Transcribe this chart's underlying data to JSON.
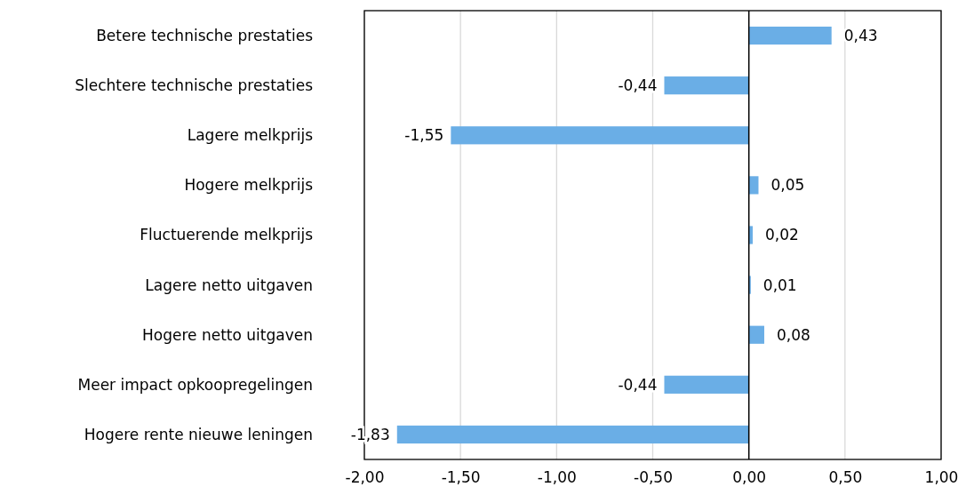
{
  "chart_data": {
    "type": "bar",
    "orientation": "horizontal",
    "categories": [
      "Betere technische prestaties",
      "Slechtere technische prestaties",
      "Lagere melkprijs",
      "Hogere melkprijs",
      "Fluctuerende melkprijs",
      "Lagere netto uitgaven",
      "Hogere netto uitgaven",
      "Meer impact opkoopregelingen",
      "Hogere rente nieuwe leningen"
    ],
    "values": [
      0.43,
      -0.44,
      -1.55,
      0.05,
      0.02,
      0.01,
      0.08,
      -0.44,
      -1.83
    ],
    "value_labels": [
      "0,43",
      "-0,44",
      "-1,55",
      "0,05",
      "0,02",
      "0,01",
      "0,08",
      "-0,44",
      "-1,83"
    ],
    "color": "#6aaee6",
    "xlim": [
      -2,
      1
    ],
    "xticks": [
      {
        "value": -2,
        "label": "-2,00"
      },
      {
        "value": -1.5,
        "label": "-1,50"
      },
      {
        "value": -1,
        "label": "-1,00"
      },
      {
        "value": -0.5,
        "label": "-0,50"
      },
      {
        "value": 0,
        "label": "0,00"
      },
      {
        "value": 0.5,
        "label": "0,50"
      },
      {
        "value": 1,
        "label": "1,00"
      }
    ],
    "grid": "x"
  }
}
